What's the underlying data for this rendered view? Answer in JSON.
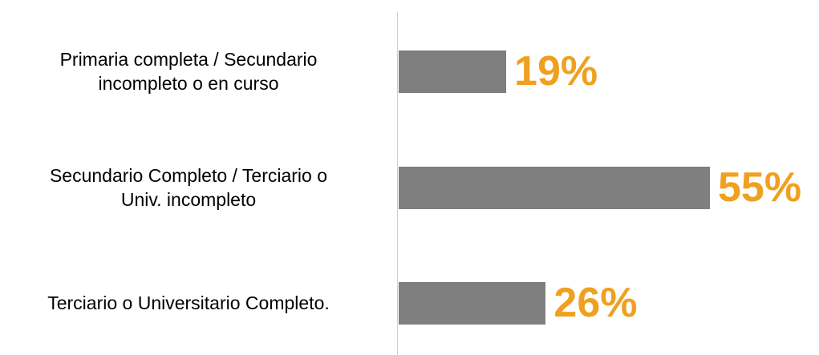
{
  "chart_data": {
    "type": "bar",
    "orientation": "horizontal",
    "categories": [
      "Primaria completa / Secundario\nincompleto o en curso",
      "Secundario Completo / Terciario o\nUniv. incompleto",
      "Terciario o Universitario Completo."
    ],
    "values": [
      19,
      55,
      26
    ],
    "value_labels": [
      "19%",
      "55%",
      "26%"
    ],
    "color": "#7f7f7f",
    "label_color": "#f0a020"
  }
}
